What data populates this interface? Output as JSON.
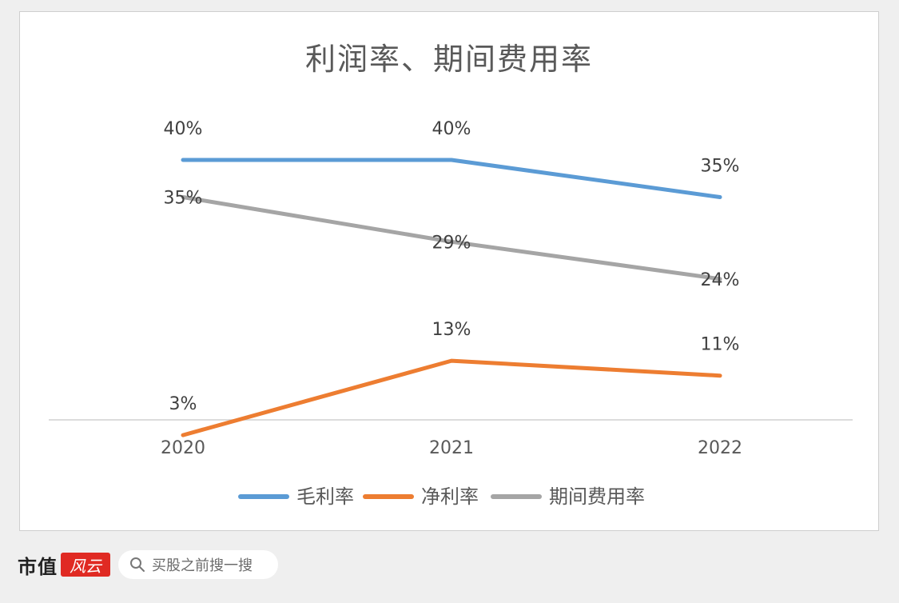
{
  "chart_data": {
    "type": "line",
    "title": "利润率、期间费用率",
    "categories": [
      "2020",
      "2021",
      "2022"
    ],
    "ylim": [
      0,
      45
    ],
    "grid": false,
    "legend_position": "bottom",
    "series": [
      {
        "name": "毛利率",
        "color": "#5b9bd5",
        "values": [
          40,
          40,
          35
        ],
        "labels": [
          "40%",
          "40%",
          "35%"
        ]
      },
      {
        "name": "净利率",
        "color": "#ed7d31",
        "values": [
          3,
          13,
          11
        ],
        "labels": [
          "3%",
          "13%",
          "11%"
        ]
      },
      {
        "name": "期间费用率",
        "color": "#a5a5a5",
        "values": [
          35,
          29,
          24
        ],
        "labels": [
          "35%",
          "29%",
          "24%"
        ]
      }
    ]
  },
  "footer": {
    "brand": "市值",
    "brand_mark": "风云",
    "search_placeholder": "买股之前搜一搜"
  }
}
